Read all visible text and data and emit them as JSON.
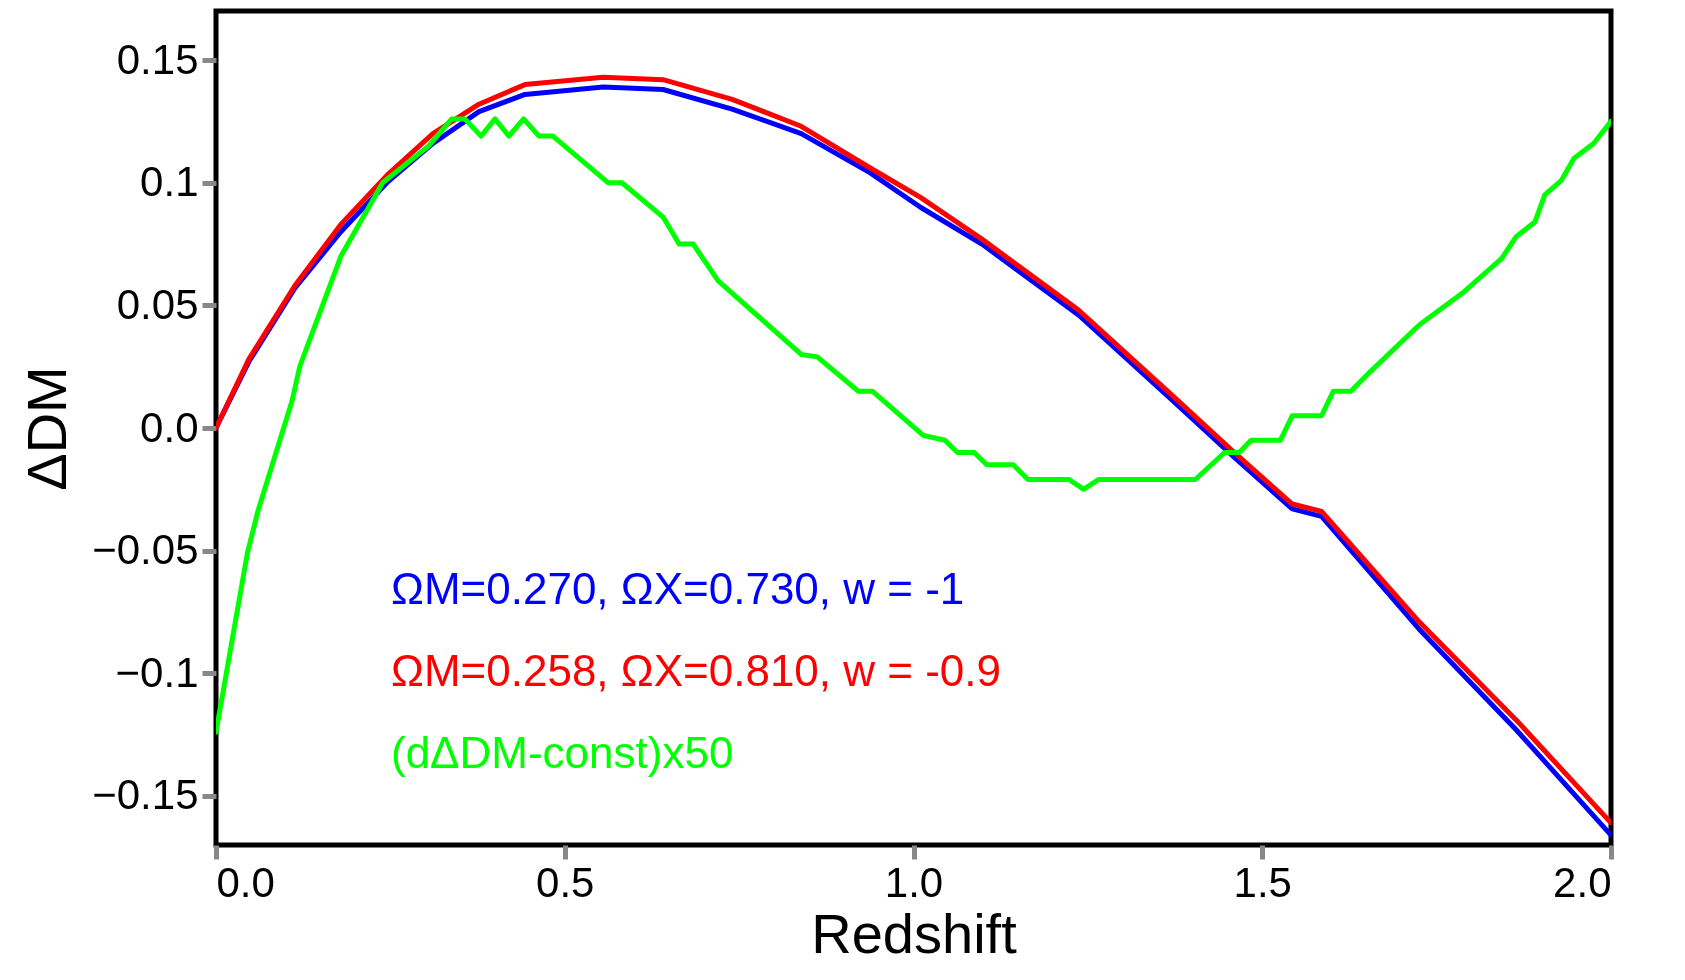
{
  "chart_data": {
    "type": "line",
    "xlabel": "Redshift",
    "ylabel": "ΔDM",
    "xlim": [
      0,
      2
    ],
    "ylim": [
      -0.17,
      0.17
    ],
    "xticks": [
      {
        "value": 0,
        "label": "0.0"
      },
      0.5,
      {
        "value": 1,
        "label": "1.0"
      },
      1.5,
      {
        "value": 2,
        "label": "2.0"
      }
    ],
    "yticks": [
      -0.15,
      -0.1,
      -0.05,
      {
        "value": 0,
        "label": "0.0"
      },
      0.05,
      0.1,
      0.15
    ],
    "grid": false,
    "legend": "bottom left",
    "marker": "none",
    "line_style": "solid",
    "series": [
      {
        "name": "ΩM=0.270, ΩX=0.730, w = -1",
        "color": "#0000ff",
        "x": [
          0,
          0.047,
          0.113,
          0.179,
          0.245,
          0.311,
          0.377,
          0.443,
          0.555,
          0.641,
          0.74,
          0.839,
          0.938,
          1.01,
          1.098,
          1.237,
          1.376,
          1.46,
          1.543,
          1.585,
          1.725,
          1.864,
          2.0
        ],
        "values": [
          0,
          0.027,
          0.057,
          0.08,
          0.1,
          0.116,
          0.129,
          0.136,
          0.139,
          0.138,
          0.13,
          0.12,
          0.104,
          0.09,
          0.075,
          0.046,
          0.01,
          -0.012,
          -0.033,
          -0.036,
          -0.082,
          -0.123,
          -0.166
        ]
      },
      {
        "name": "ΩM=0.258, ΩX=0.810, w = -0.9",
        "color": "#ff0000",
        "x": [
          0,
          0.047,
          0.113,
          0.179,
          0.245,
          0.311,
          0.377,
          0.443,
          0.555,
          0.641,
          0.74,
          0.839,
          0.938,
          1.01,
          1.098,
          1.237,
          1.376,
          1.46,
          1.543,
          1.585,
          1.725,
          1.864,
          2.0
        ],
        "values": [
          0,
          0.028,
          0.058,
          0.083,
          0.103,
          0.12,
          0.132,
          0.14,
          0.143,
          0.142,
          0.134,
          0.123,
          0.106,
          0.094,
          0.077,
          0.048,
          0.012,
          -0.01,
          -0.031,
          -0.034,
          -0.079,
          -0.119,
          -0.161
        ]
      },
      {
        "name": "(dΔDM-const)x50",
        "color": "#00ff00",
        "x": [
          0,
          0.045,
          0.06,
          0.109,
          0.12,
          0.179,
          0.239,
          0.305,
          0.338,
          0.357,
          0.38,
          0.4,
          0.42,
          0.441,
          0.463,
          0.483,
          0.562,
          0.582,
          0.641,
          0.664,
          0.684,
          0.72,
          0.839,
          0.862,
          0.921,
          0.941,
          1.014,
          1.045,
          1.063,
          1.087,
          1.105,
          1.143,
          1.164,
          1.223,
          1.244,
          1.265,
          1.404,
          1.446,
          1.467,
          1.484,
          1.526,
          1.543,
          1.585,
          1.602,
          1.627,
          1.655,
          1.725,
          1.787,
          1.843,
          1.864,
          1.891,
          1.905,
          1.929,
          1.947,
          1.975,
          2.0
        ],
        "values": [
          -0.124,
          -0.051,
          -0.034,
          0.011,
          0.025,
          0.07,
          0.1,
          0.115,
          0.126,
          0.126,
          0.119,
          0.126,
          0.119,
          0.126,
          0.119,
          0.119,
          0.1,
          0.1,
          0.086,
          0.075,
          0.075,
          0.06,
          0.03,
          0.029,
          0.015,
          0.015,
          -0.003,
          -0.005,
          -0.01,
          -0.01,
          -0.015,
          -0.015,
          -0.021,
          -0.021,
          -0.025,
          -0.021,
          -0.021,
          -0.01,
          -0.01,
          -0.005,
          -0.005,
          0.005,
          0.005,
          0.015,
          0.015,
          0.023,
          0.042,
          0.055,
          0.069,
          0.078,
          0.084,
          0.095,
          0.101,
          0.11,
          0.116,
          0.125
        ]
      }
    ]
  }
}
